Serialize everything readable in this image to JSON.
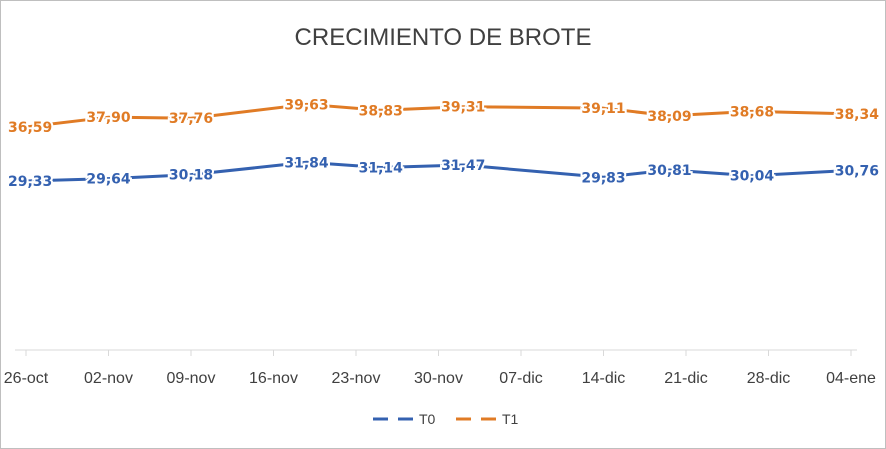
{
  "chart_data": {
    "type": "line",
    "title": "CRECIMIENTO DE BROTE",
    "xlabel": "",
    "ylabel": "",
    "x": [
      "26-oct",
      "02-nov",
      "09-nov",
      "16-nov",
      "23-nov",
      "30-nov",
      "07-dic",
      "14-dic",
      "21-dic",
      "28-dic",
      "04-ene"
    ],
    "grid": false,
    "legend_position": "bottom",
    "series": [
      {
        "name": "T0",
        "color": "#3461b0",
        "points": [
          {
            "x": 0.0,
            "y": 29.33,
            "label": "29,33"
          },
          {
            "x": 1.0,
            "y": 29.64,
            "label": "29,64"
          },
          {
            "x": 2.0,
            "y": 30.18,
            "label": "30,18"
          },
          {
            "x": 3.4,
            "y": 31.84,
            "label": "31,84"
          },
          {
            "x": 4.3,
            "y": 31.14,
            "label": "31,14"
          },
          {
            "x": 5.3,
            "y": 31.47,
            "label": "31,47"
          },
          {
            "x": 7.0,
            "y": 29.83,
            "label": "29,83"
          },
          {
            "x": 7.8,
            "y": 30.81,
            "label": "30,81"
          },
          {
            "x": 8.8,
            "y": 30.04,
            "label": "30,04"
          },
          {
            "x": 10.0,
            "y": 30.76,
            "label": "30,76"
          }
        ]
      },
      {
        "name": "T1",
        "color": "#e07b25",
        "points": [
          {
            "x": 0.0,
            "y": 36.59,
            "label": "36,59"
          },
          {
            "x": 1.0,
            "y": 37.9,
            "label": "37,90"
          },
          {
            "x": 2.0,
            "y": 37.76,
            "label": "37,76"
          },
          {
            "x": 3.4,
            "y": 39.63,
            "label": "39,63"
          },
          {
            "x": 4.3,
            "y": 38.83,
            "label": "38,83"
          },
          {
            "x": 5.3,
            "y": 39.31,
            "label": "39,31"
          },
          {
            "x": 7.0,
            "y": 39.11,
            "label": "39,11"
          },
          {
            "x": 7.8,
            "y": 38.09,
            "label": "38,09"
          },
          {
            "x": 8.8,
            "y": 38.68,
            "label": "38,68"
          },
          {
            "x": 10.0,
            "y": 38.34,
            "label": "38,34"
          }
        ]
      }
    ]
  }
}
